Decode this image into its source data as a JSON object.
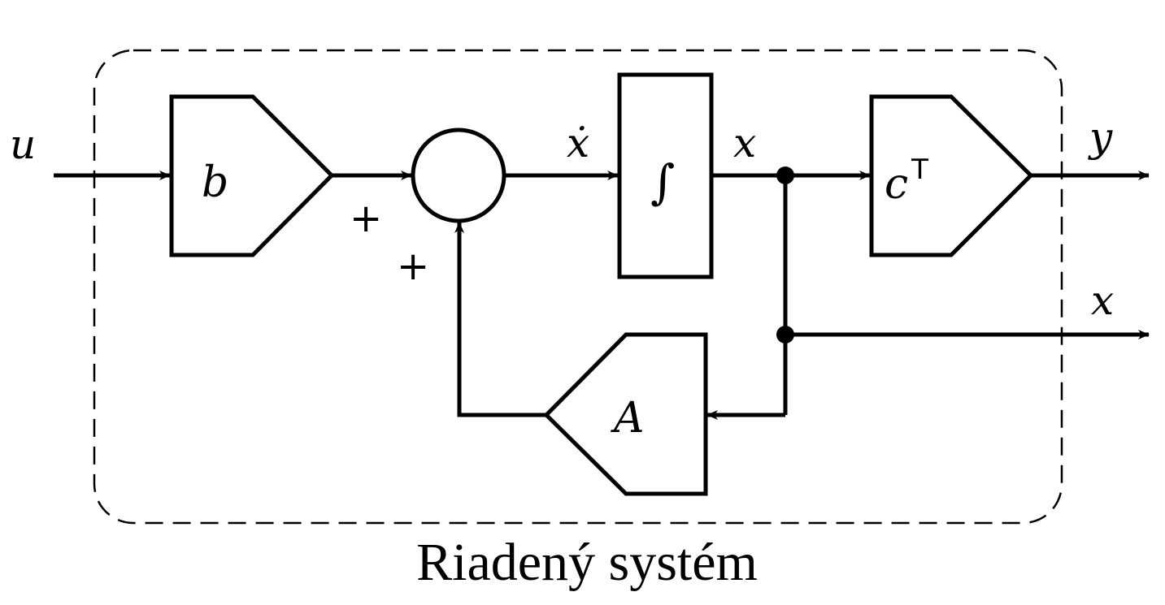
{
  "diagram": {
    "caption": "Riadený systém",
    "signals": {
      "input": "u",
      "state_derivative": "ẋ",
      "state": "x",
      "output_y": "y",
      "output_x": "x"
    },
    "blocks": {
      "input_gain": "b",
      "integrator": "∫",
      "output_gain": "c",
      "output_gain_superscript": "T",
      "feedback_gain": "A"
    },
    "summing_junction": {
      "sign_top": "+",
      "sign_bottom": "+"
    }
  }
}
